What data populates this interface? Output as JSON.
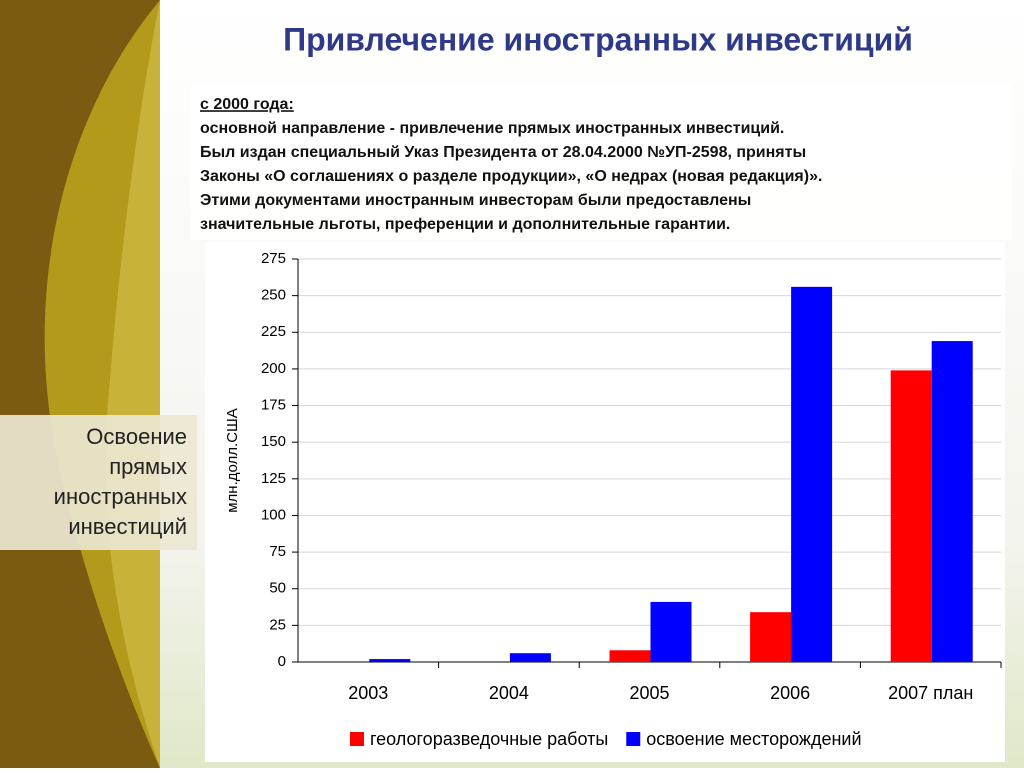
{
  "slide": {
    "title": "Привлечение иностранных инвестиций",
    "intro": [
      "с 2000 года:",
      "основной направление - привлечение прямых иностранных инвестиций.",
      "Был издан специальный Указ Президента от 28.04.2000 №УП-2598, приняты",
      "Законы «О соглашениях о разделе продукции», «О недрах (новая редакция)».",
      "Этими документами иностранным инвесторам были предоставлены",
      "значительные льготы,  преференции и дополнительные гарантии."
    ],
    "side_label": [
      "Освоение",
      "прямых",
      "иностранных",
      "инвестиций"
    ]
  },
  "chart_data": {
    "type": "bar",
    "y_label": "млн.долл.США",
    "categories": [
      "2003",
      "2004",
      "2005",
      "2006",
      "2007 план"
    ],
    "series": [
      {
        "name": "геологоразведочные работы",
        "color": "#ff0000",
        "values": [
          0,
          0,
          8,
          34,
          199
        ]
      },
      {
        "name": "освоение месторождений",
        "color": "#0000ff",
        "values": [
          2,
          6,
          41,
          256,
          219
        ]
      }
    ],
    "ylim": [
      0,
      275
    ],
    "yticks": [
      0,
      25,
      50,
      75,
      100,
      125,
      150,
      175,
      200,
      225,
      250,
      275
    ],
    "grid": true
  }
}
